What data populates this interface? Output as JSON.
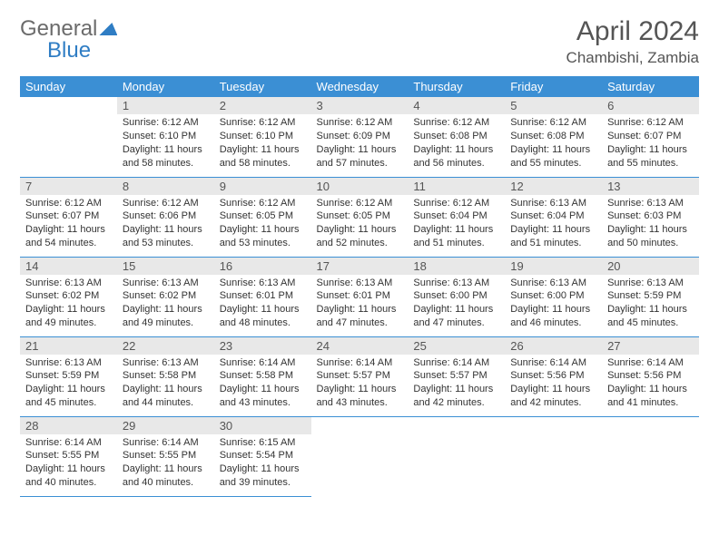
{
  "brand": {
    "part1": "General",
    "part2": "Blue"
  },
  "title": "April 2024",
  "location": "Chambishi, Zambia",
  "colors": {
    "header_bg": "#3b8fd4",
    "header_text": "#ffffff",
    "daynum_bg": "#e8e8e8",
    "text": "#333333",
    "rule": "#3b8fd4",
    "brand_gray": "#6b6b6b",
    "brand_blue": "#2f7dc4"
  },
  "weekdays": [
    "Sunday",
    "Monday",
    "Tuesday",
    "Wednesday",
    "Thursday",
    "Friday",
    "Saturday"
  ],
  "weeks": [
    [
      null,
      {
        "n": "1",
        "sr": "Sunrise: 6:12 AM",
        "ss": "Sunset: 6:10 PM",
        "dl": "Daylight: 11 hours and 58 minutes."
      },
      {
        "n": "2",
        "sr": "Sunrise: 6:12 AM",
        "ss": "Sunset: 6:10 PM",
        "dl": "Daylight: 11 hours and 58 minutes."
      },
      {
        "n": "3",
        "sr": "Sunrise: 6:12 AM",
        "ss": "Sunset: 6:09 PM",
        "dl": "Daylight: 11 hours and 57 minutes."
      },
      {
        "n": "4",
        "sr": "Sunrise: 6:12 AM",
        "ss": "Sunset: 6:08 PM",
        "dl": "Daylight: 11 hours and 56 minutes."
      },
      {
        "n": "5",
        "sr": "Sunrise: 6:12 AM",
        "ss": "Sunset: 6:08 PM",
        "dl": "Daylight: 11 hours and 55 minutes."
      },
      {
        "n": "6",
        "sr": "Sunrise: 6:12 AM",
        "ss": "Sunset: 6:07 PM",
        "dl": "Daylight: 11 hours and 55 minutes."
      }
    ],
    [
      {
        "n": "7",
        "sr": "Sunrise: 6:12 AM",
        "ss": "Sunset: 6:07 PM",
        "dl": "Daylight: 11 hours and 54 minutes."
      },
      {
        "n": "8",
        "sr": "Sunrise: 6:12 AM",
        "ss": "Sunset: 6:06 PM",
        "dl": "Daylight: 11 hours and 53 minutes."
      },
      {
        "n": "9",
        "sr": "Sunrise: 6:12 AM",
        "ss": "Sunset: 6:05 PM",
        "dl": "Daylight: 11 hours and 53 minutes."
      },
      {
        "n": "10",
        "sr": "Sunrise: 6:12 AM",
        "ss": "Sunset: 6:05 PM",
        "dl": "Daylight: 11 hours and 52 minutes."
      },
      {
        "n": "11",
        "sr": "Sunrise: 6:12 AM",
        "ss": "Sunset: 6:04 PM",
        "dl": "Daylight: 11 hours and 51 minutes."
      },
      {
        "n": "12",
        "sr": "Sunrise: 6:13 AM",
        "ss": "Sunset: 6:04 PM",
        "dl": "Daylight: 11 hours and 51 minutes."
      },
      {
        "n": "13",
        "sr": "Sunrise: 6:13 AM",
        "ss": "Sunset: 6:03 PM",
        "dl": "Daylight: 11 hours and 50 minutes."
      }
    ],
    [
      {
        "n": "14",
        "sr": "Sunrise: 6:13 AM",
        "ss": "Sunset: 6:02 PM",
        "dl": "Daylight: 11 hours and 49 minutes."
      },
      {
        "n": "15",
        "sr": "Sunrise: 6:13 AM",
        "ss": "Sunset: 6:02 PM",
        "dl": "Daylight: 11 hours and 49 minutes."
      },
      {
        "n": "16",
        "sr": "Sunrise: 6:13 AM",
        "ss": "Sunset: 6:01 PM",
        "dl": "Daylight: 11 hours and 48 minutes."
      },
      {
        "n": "17",
        "sr": "Sunrise: 6:13 AM",
        "ss": "Sunset: 6:01 PM",
        "dl": "Daylight: 11 hours and 47 minutes."
      },
      {
        "n": "18",
        "sr": "Sunrise: 6:13 AM",
        "ss": "Sunset: 6:00 PM",
        "dl": "Daylight: 11 hours and 47 minutes."
      },
      {
        "n": "19",
        "sr": "Sunrise: 6:13 AM",
        "ss": "Sunset: 6:00 PM",
        "dl": "Daylight: 11 hours and 46 minutes."
      },
      {
        "n": "20",
        "sr": "Sunrise: 6:13 AM",
        "ss": "Sunset: 5:59 PM",
        "dl": "Daylight: 11 hours and 45 minutes."
      }
    ],
    [
      {
        "n": "21",
        "sr": "Sunrise: 6:13 AM",
        "ss": "Sunset: 5:59 PM",
        "dl": "Daylight: 11 hours and 45 minutes."
      },
      {
        "n": "22",
        "sr": "Sunrise: 6:13 AM",
        "ss": "Sunset: 5:58 PM",
        "dl": "Daylight: 11 hours and 44 minutes."
      },
      {
        "n": "23",
        "sr": "Sunrise: 6:14 AM",
        "ss": "Sunset: 5:58 PM",
        "dl": "Daylight: 11 hours and 43 minutes."
      },
      {
        "n": "24",
        "sr": "Sunrise: 6:14 AM",
        "ss": "Sunset: 5:57 PM",
        "dl": "Daylight: 11 hours and 43 minutes."
      },
      {
        "n": "25",
        "sr": "Sunrise: 6:14 AM",
        "ss": "Sunset: 5:57 PM",
        "dl": "Daylight: 11 hours and 42 minutes."
      },
      {
        "n": "26",
        "sr": "Sunrise: 6:14 AM",
        "ss": "Sunset: 5:56 PM",
        "dl": "Daylight: 11 hours and 42 minutes."
      },
      {
        "n": "27",
        "sr": "Sunrise: 6:14 AM",
        "ss": "Sunset: 5:56 PM",
        "dl": "Daylight: 11 hours and 41 minutes."
      }
    ],
    [
      {
        "n": "28",
        "sr": "Sunrise: 6:14 AM",
        "ss": "Sunset: 5:55 PM",
        "dl": "Daylight: 11 hours and 40 minutes."
      },
      {
        "n": "29",
        "sr": "Sunrise: 6:14 AM",
        "ss": "Sunset: 5:55 PM",
        "dl": "Daylight: 11 hours and 40 minutes."
      },
      {
        "n": "30",
        "sr": "Sunrise: 6:15 AM",
        "ss": "Sunset: 5:54 PM",
        "dl": "Daylight: 11 hours and 39 minutes."
      },
      null,
      null,
      null,
      null
    ]
  ]
}
